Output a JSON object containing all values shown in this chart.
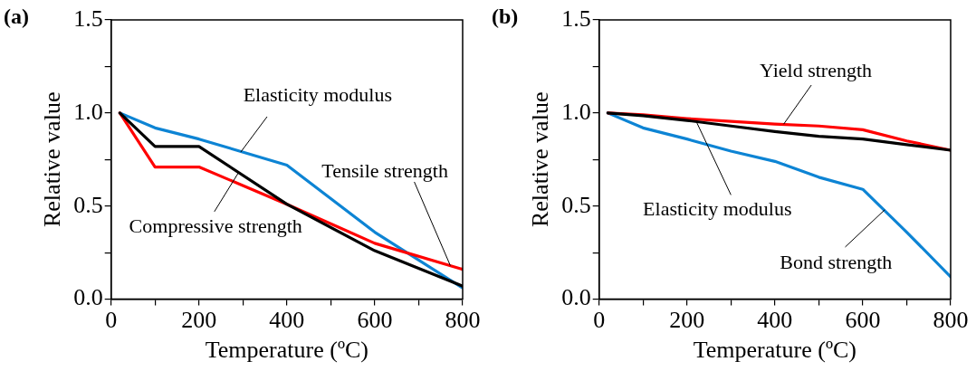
{
  "chart_data": [
    {
      "type": "line",
      "title": "(a)",
      "xlabel": "Temperature (ºC)",
      "ylabel": "Relative value",
      "xlim": [
        0,
        800
      ],
      "ylim": [
        0,
        1.5
      ],
      "xticks": [
        0,
        {
          "value": 100,
          "label": null
        },
        200,
        {
          "value": 300,
          "label": null
        },
        400,
        {
          "value": 500,
          "label": null
        },
        600,
        {
          "value": 700,
          "label": null
        },
        800
      ],
      "yticks": [
        {
          "value": 0,
          "label": "0.0"
        },
        {
          "value": 0.25,
          "label": null
        },
        {
          "value": 0.5,
          "label": "0.5"
        },
        {
          "value": 0.75,
          "label": null
        },
        {
          "value": 1,
          "label": "1.0"
        },
        {
          "value": 1.25,
          "label": null
        },
        {
          "value": 1.5,
          "label": "1.5"
        }
      ],
      "grid": false,
      "legend": false,
      "marker": "none",
      "line_style": "solid",
      "series": [
        {
          "color": "#000000",
          "x": [
            20,
            100,
            200,
            400,
            600,
            800
          ],
          "values": [
            1.0,
            0.82,
            0.82,
            0.51,
            0.26,
            0.07
          ]
        },
        {
          "color": "#ff0000",
          "x": [
            20,
            100,
            200,
            400,
            600,
            800
          ],
          "values": [
            1.0,
            0.71,
            0.71,
            0.51,
            0.3,
            0.16
          ]
        },
        {
          "color": "#0d84d4",
          "x": [
            20,
            100,
            200,
            400,
            600,
            800
          ],
          "values": [
            1.0,
            0.92,
            0.86,
            0.72,
            0.36,
            0.06
          ]
        }
      ],
      "annotations": [
        {
          "text": "Compressive strength",
          "x": 290,
          "y": 0.68
        },
        {
          "text": "Tensile strength",
          "x": 772,
          "y": 0.18
        },
        {
          "text": "Elasticity modulus",
          "x": 295,
          "y": 0.79
        }
      ]
    },
    {
      "type": "line",
      "title": "(b)",
      "xlabel": "Temperature (ºC)",
      "ylabel": "Relative value",
      "xlim": [
        0,
        800
      ],
      "ylim": [
        0,
        1.5
      ],
      "xticks": [
        0,
        {
          "value": 100,
          "label": null
        },
        200,
        {
          "value": 300,
          "label": null
        },
        400,
        {
          "value": 500,
          "label": null
        },
        600,
        {
          "value": 700,
          "label": null
        },
        800
      ],
      "yticks": [
        {
          "value": 0,
          "label": "0.0"
        },
        {
          "value": 0.25,
          "label": null
        },
        {
          "value": 0.5,
          "label": "0.5"
        },
        {
          "value": 0.75,
          "label": null
        },
        {
          "value": 1,
          "label": "1.0"
        },
        {
          "value": 1.25,
          "label": null
        },
        {
          "value": 1.5,
          "label": "1.5"
        }
      ],
      "grid": false,
      "legend": false,
      "marker": "none",
      "line_style": "solid",
      "series": [
        {
          "color": "#000000",
          "x": [
            20,
            100,
            200,
            300,
            400,
            500,
            600,
            700,
            800
          ],
          "values": [
            1.0,
            0.985,
            0.96,
            0.93,
            0.9,
            0.875,
            0.86,
            0.83,
            0.8
          ]
        },
        {
          "color": "#ff0000",
          "x": [
            20,
            100,
            200,
            300,
            400,
            500,
            600,
            700,
            800
          ],
          "values": [
            1.0,
            0.99,
            0.97,
            0.955,
            0.94,
            0.93,
            0.91,
            0.85,
            0.8
          ]
        },
        {
          "color": "#0d84d4",
          "x": [
            20,
            100,
            200,
            300,
            400,
            500,
            600,
            700,
            800
          ],
          "values": [
            1.0,
            0.92,
            0.86,
            0.795,
            0.74,
            0.655,
            0.59,
            0.36,
            0.12
          ]
        }
      ],
      "annotations": [
        {
          "text": "Elasticity modulus",
          "x": 222,
          "y": 0.95
        },
        {
          "text": "Yield strength",
          "x": 420,
          "y": 0.94
        },
        {
          "text": "Bond strength",
          "x": 650,
          "y": 0.48
        }
      ]
    }
  ]
}
